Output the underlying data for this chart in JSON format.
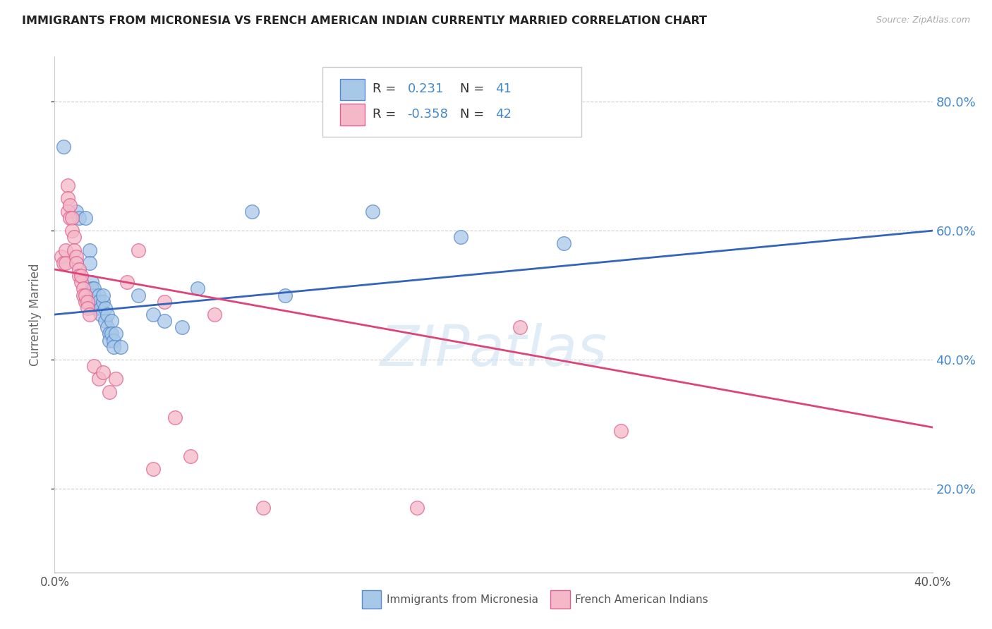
{
  "title": "IMMIGRANTS FROM MICRONESIA VS FRENCH AMERICAN INDIAN CURRENTLY MARRIED CORRELATION CHART",
  "source": "Source: ZipAtlas.com",
  "ylabel": "Currently Married",
  "xmin": 0.0,
  "xmax": 0.4,
  "ymin": 0.07,
  "ymax": 0.87,
  "yticks": [
    0.2,
    0.4,
    0.6,
    0.8
  ],
  "ytick_labels": [
    "20.0%",
    "40.0%",
    "60.0%",
    "80.0%"
  ],
  "xticks": [
    0.0,
    0.1,
    0.2,
    0.3,
    0.4
  ],
  "xtick_labels": [
    "0.0%",
    "",
    "",
    "",
    "40.0%"
  ],
  "blue_R": 0.231,
  "blue_N": 41,
  "pink_R": -0.358,
  "pink_N": 42,
  "blue_fill": "#a8c8e8",
  "pink_fill": "#f4b8c8",
  "blue_edge": "#5588cc",
  "pink_edge": "#e06090",
  "blue_line_color": "#3366bb",
  "pink_line_color": "#dd4477",
  "legend_label_blue": "Immigrants from Micronesia",
  "legend_label_pink": "French American Indians",
  "watermark": "ZIPatlas",
  "title_color": "#222222",
  "axis_label_color": "#666666",
  "right_axis_color": "#4488cc",
  "grid_color": "#cccccc",
  "blue_scatter": [
    [
      0.004,
      0.73
    ],
    [
      0.01,
      0.63
    ],
    [
      0.011,
      0.62
    ],
    [
      0.014,
      0.62
    ],
    [
      0.016,
      0.57
    ],
    [
      0.016,
      0.55
    ],
    [
      0.017,
      0.52
    ],
    [
      0.017,
      0.5
    ],
    [
      0.017,
      0.51
    ],
    [
      0.018,
      0.5
    ],
    [
      0.018,
      0.51
    ],
    [
      0.019,
      0.49
    ],
    [
      0.019,
      0.48
    ],
    [
      0.02,
      0.5
    ],
    [
      0.02,
      0.49
    ],
    [
      0.021,
      0.48
    ],
    [
      0.021,
      0.47
    ],
    [
      0.022,
      0.49
    ],
    [
      0.022,
      0.5
    ],
    [
      0.023,
      0.48
    ],
    [
      0.023,
      0.46
    ],
    [
      0.024,
      0.45
    ],
    [
      0.024,
      0.47
    ],
    [
      0.025,
      0.44
    ],
    [
      0.025,
      0.43
    ],
    [
      0.026,
      0.46
    ],
    [
      0.026,
      0.44
    ],
    [
      0.027,
      0.43
    ],
    [
      0.027,
      0.42
    ],
    [
      0.028,
      0.44
    ],
    [
      0.03,
      0.42
    ],
    [
      0.038,
      0.5
    ],
    [
      0.045,
      0.47
    ],
    [
      0.05,
      0.46
    ],
    [
      0.058,
      0.45
    ],
    [
      0.065,
      0.51
    ],
    [
      0.09,
      0.63
    ],
    [
      0.105,
      0.5
    ],
    [
      0.145,
      0.63
    ],
    [
      0.185,
      0.59
    ],
    [
      0.232,
      0.58
    ]
  ],
  "pink_scatter": [
    [
      0.003,
      0.56
    ],
    [
      0.004,
      0.55
    ],
    [
      0.005,
      0.57
    ],
    [
      0.005,
      0.55
    ],
    [
      0.006,
      0.67
    ],
    [
      0.006,
      0.65
    ],
    [
      0.006,
      0.63
    ],
    [
      0.007,
      0.64
    ],
    [
      0.007,
      0.62
    ],
    [
      0.008,
      0.62
    ],
    [
      0.008,
      0.6
    ],
    [
      0.009,
      0.59
    ],
    [
      0.009,
      0.57
    ],
    [
      0.01,
      0.56
    ],
    [
      0.01,
      0.55
    ],
    [
      0.011,
      0.54
    ],
    [
      0.011,
      0.53
    ],
    [
      0.012,
      0.52
    ],
    [
      0.012,
      0.53
    ],
    [
      0.013,
      0.51
    ],
    [
      0.013,
      0.5
    ],
    [
      0.014,
      0.49
    ],
    [
      0.014,
      0.5
    ],
    [
      0.015,
      0.49
    ],
    [
      0.015,
      0.48
    ],
    [
      0.016,
      0.47
    ],
    [
      0.018,
      0.39
    ],
    [
      0.02,
      0.37
    ],
    [
      0.022,
      0.38
    ],
    [
      0.025,
      0.35
    ],
    [
      0.028,
      0.37
    ],
    [
      0.033,
      0.52
    ],
    [
      0.038,
      0.57
    ],
    [
      0.045,
      0.23
    ],
    [
      0.05,
      0.49
    ],
    [
      0.055,
      0.31
    ],
    [
      0.062,
      0.25
    ],
    [
      0.073,
      0.47
    ],
    [
      0.095,
      0.17
    ],
    [
      0.165,
      0.17
    ],
    [
      0.212,
      0.45
    ],
    [
      0.258,
      0.29
    ]
  ],
  "blue_line_x": [
    0.0,
    0.4
  ],
  "blue_line_y": [
    0.47,
    0.6
  ],
  "pink_line_x": [
    0.0,
    0.4
  ],
  "pink_line_y": [
    0.54,
    0.295
  ]
}
